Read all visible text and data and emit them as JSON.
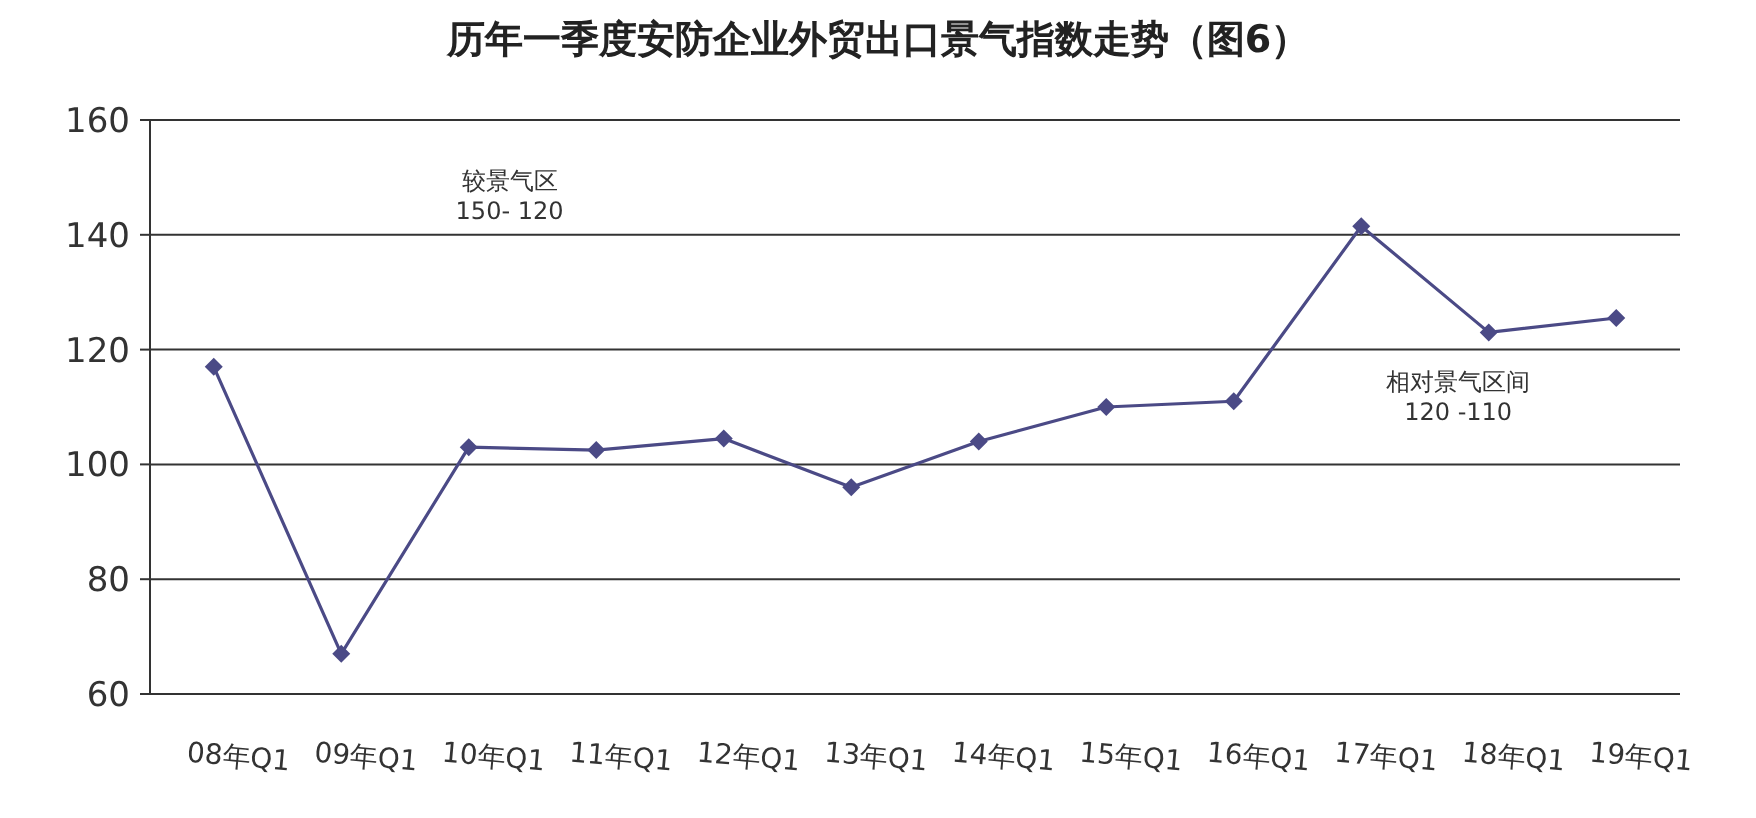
{
  "chart_data": {
    "type": "line",
    "title": "历年一季度安防企业外贸出口景气指数走势（图6）",
    "categories": [
      "08年Q1",
      "09年Q1",
      "10年Q1",
      "11年Q1",
      "12年Q1",
      "13年Q1",
      "14年Q1",
      "15年Q1",
      "16年Q1",
      "17年Q1",
      "18年Q1",
      "19年Q1"
    ],
    "series": [
      {
        "color": "#4b4a86",
        "values": [
          117,
          67,
          103,
          102.5,
          104.5,
          96,
          104,
          110,
          111,
          141.5,
          123,
          125.5
        ]
      }
    ],
    "ylim": [
      60,
      160
    ],
    "yticks": [
      60,
      80,
      100,
      120,
      140,
      160
    ],
    "grid": "y",
    "marker": "diamond",
    "line_style": "solid",
    "annotations": [
      "较景气区\n150- 120",
      "相对景气区间\n120 -110"
    ]
  }
}
